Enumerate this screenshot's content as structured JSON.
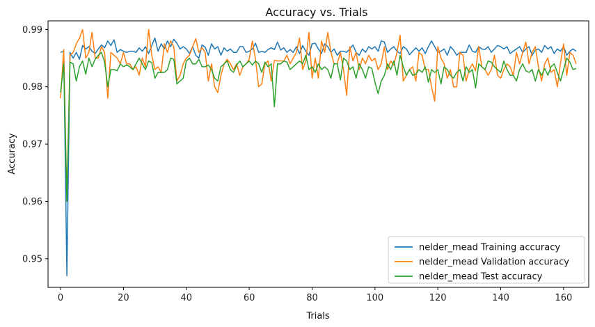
{
  "chart_data": {
    "type": "line",
    "title": "Accuracy vs. Trials",
    "xlabel": "Trials",
    "ylabel": "Accuracy",
    "xlim": [
      -4,
      168
    ],
    "ylim": [
      0.945,
      0.9915
    ],
    "xticks": [
      0,
      20,
      40,
      60,
      80,
      100,
      120,
      140,
      160
    ],
    "yticks": [
      0.95,
      0.96,
      0.97,
      0.98,
      0.99
    ],
    "ytick_labels": [
      "0.95",
      "0.96",
      "0.97",
      "0.98",
      "0.99"
    ],
    "grid": false,
    "legend_position": "lower-right",
    "series": [
      {
        "name": "nelder_mead Training accuracy",
        "color": "#1f77b4",
        "x_start": 0,
        "values": [
          0.986,
          0.9862,
          0.947,
          0.986,
          0.985,
          0.986,
          0.9848,
          0.9872,
          0.9866,
          0.987,
          0.9862,
          0.9858,
          0.9866,
          0.9873,
          0.9868,
          0.988,
          0.9872,
          0.9882,
          0.986,
          0.9865,
          0.9862,
          0.986,
          0.9862,
          0.9862,
          0.986,
          0.9868,
          0.9862,
          0.987,
          0.9858,
          0.9872,
          0.9885,
          0.9862,
          0.9875,
          0.9866,
          0.988,
          0.987,
          0.9883,
          0.9876,
          0.9866,
          0.987,
          0.9866,
          0.9858,
          0.987,
          0.9855,
          0.985,
          0.9873,
          0.9869,
          0.9855,
          0.9875,
          0.9866,
          0.987,
          0.9855,
          0.9868,
          0.9862,
          0.9866,
          0.986,
          0.986,
          0.987,
          0.987,
          0.986,
          0.9862,
          0.9866,
          0.9876,
          0.986,
          0.9862,
          0.986,
          0.9865,
          0.9868,
          0.9865,
          0.9878,
          0.9864,
          0.9868,
          0.986,
          0.9865,
          0.986,
          0.987,
          0.9858,
          0.9872,
          0.9862,
          0.9855,
          0.9875,
          0.9876,
          0.9866,
          0.9858,
          0.9875,
          0.987,
          0.986,
          0.9866,
          0.9855,
          0.9862,
          0.9862,
          0.986,
          0.9866,
          0.9873,
          0.986,
          0.9855,
          0.9866,
          0.986,
          0.987,
          0.9866,
          0.987,
          0.9862,
          0.988,
          0.9878,
          0.986,
          0.9866,
          0.987,
          0.9862,
          0.9858,
          0.987,
          0.9866,
          0.9856,
          0.9862,
          0.9868,
          0.9862,
          0.9868,
          0.9858,
          0.987,
          0.988,
          0.987,
          0.986,
          0.9862,
          0.9866,
          0.9855,
          0.987,
          0.9864,
          0.9855,
          0.986,
          0.986,
          0.986,
          0.9873,
          0.9862,
          0.986,
          0.987,
          0.9866,
          0.9865,
          0.987,
          0.986,
          0.9866,
          0.9872,
          0.987,
          0.9866,
          0.987,
          0.9858,
          0.9862,
          0.9866,
          0.987,
          0.986,
          0.9866,
          0.987,
          0.9855,
          0.9864,
          0.9866,
          0.986,
          0.9872,
          0.9866,
          0.987,
          0.9858,
          0.9866,
          0.9862,
          0.987,
          0.9855,
          0.9862,
          0.9866,
          0.9862
        ]
      },
      {
        "name": "nelder_mead Validation accuracy",
        "color": "#ff7f0e",
        "x_start": 0,
        "values": [
          0.978,
          0.9865,
          0.96,
          0.9855,
          0.986,
          0.9875,
          0.9885,
          0.99,
          0.985,
          0.986,
          0.9895,
          0.985,
          0.985,
          0.987,
          0.986,
          0.978,
          0.986,
          0.9855,
          0.985,
          0.984,
          0.986,
          0.984,
          0.984,
          0.983,
          0.9835,
          0.982,
          0.985,
          0.9835,
          0.99,
          0.9855,
          0.983,
          0.9835,
          0.9825,
          0.9875,
          0.986,
          0.988,
          0.987,
          0.981,
          0.982,
          0.984,
          0.985,
          0.9855,
          0.987,
          0.9884,
          0.986,
          0.9868,
          0.986,
          0.981,
          0.984,
          0.98,
          0.979,
          0.982,
          0.984,
          0.9848,
          0.984,
          0.983,
          0.984,
          0.982,
          0.9835,
          0.984,
          0.9848,
          0.988,
          0.9848,
          0.98,
          0.9805,
          0.984,
          0.9845,
          0.981,
          0.9846,
          0.9845,
          0.9845,
          0.9845,
          0.9855,
          0.984,
          0.985,
          0.986,
          0.9885,
          0.983,
          0.9845,
          0.9895,
          0.9815,
          0.985,
          0.9815,
          0.988,
          0.986,
          0.9895,
          0.986,
          0.984,
          0.984,
          0.986,
          0.983,
          0.9785,
          0.987,
          0.9845,
          0.986,
          0.983,
          0.985,
          0.984,
          0.9855,
          0.9845,
          0.985,
          0.983,
          0.984,
          0.987,
          0.983,
          0.9845,
          0.9838,
          0.986,
          0.989,
          0.981,
          0.982,
          0.983,
          0.9835,
          0.981,
          0.986,
          0.9855,
          0.983,
          0.983,
          0.98,
          0.9775,
          0.987,
          0.985,
          0.984,
          0.9815,
          0.983,
          0.98,
          0.98,
          0.986,
          0.9855,
          0.981,
          0.983,
          0.984,
          0.9828,
          0.987,
          0.9835,
          0.983,
          0.982,
          0.983,
          0.9855,
          0.982,
          0.9815,
          0.983,
          0.984,
          0.9835,
          0.982,
          0.986,
          0.984,
          0.986,
          0.9878,
          0.984,
          0.986,
          0.987,
          0.9835,
          0.981,
          0.984,
          0.985,
          0.9825,
          0.983,
          0.98,
          0.984,
          0.9875,
          0.982,
          0.986,
          0.9855,
          0.984
        ]
      },
      {
        "name": "nelder_mead Test accuracy",
        "color": "#2ca02c",
        "x_start": 0,
        "values": [
          0.979,
          0.984,
          0.96,
          0.9843,
          0.984,
          0.981,
          0.9835,
          0.9845,
          0.9822,
          0.985,
          0.9835,
          0.9848,
          0.9855,
          0.986,
          0.9843,
          0.98,
          0.983,
          0.983,
          0.9828,
          0.984,
          0.9835,
          0.9838,
          0.9835,
          0.983,
          0.984,
          0.985,
          0.984,
          0.983,
          0.9845,
          0.9842,
          0.9815,
          0.9825,
          0.9825,
          0.9825,
          0.983,
          0.985,
          0.9848,
          0.9805,
          0.981,
          0.9815,
          0.9845,
          0.985,
          0.984,
          0.984,
          0.9848,
          0.9835,
          0.9835,
          0.9838,
          0.983,
          0.9815,
          0.981,
          0.9835,
          0.984,
          0.9845,
          0.983,
          0.9825,
          0.9838,
          0.9845,
          0.9835,
          0.984,
          0.9845,
          0.9838,
          0.9845,
          0.984,
          0.9825,
          0.9843,
          0.9835,
          0.984,
          0.9765,
          0.984,
          0.984,
          0.9845,
          0.9843,
          0.983,
          0.9835,
          0.984,
          0.9845,
          0.984,
          0.9855,
          0.983,
          0.9835,
          0.9825,
          0.984,
          0.983,
          0.9835,
          0.983,
          0.9815,
          0.984,
          0.984,
          0.9812,
          0.985,
          0.9845,
          0.983,
          0.9835,
          0.9815,
          0.984,
          0.983,
          0.9815,
          0.9835,
          0.9832,
          0.9808,
          0.9788,
          0.981,
          0.982,
          0.984,
          0.983,
          0.9845,
          0.982,
          0.9855,
          0.9835,
          0.982,
          0.983,
          0.982,
          0.9822,
          0.983,
          0.9825,
          0.9835,
          0.9808,
          0.983,
          0.9825,
          0.983,
          0.9805,
          0.9835,
          0.983,
          0.982,
          0.9815,
          0.9825,
          0.983,
          0.981,
          0.9835,
          0.9825,
          0.983,
          0.9798,
          0.984,
          0.9835,
          0.983,
          0.9845,
          0.9843,
          0.9835,
          0.983,
          0.9825,
          0.9845,
          0.983,
          0.982,
          0.982,
          0.981,
          0.983,
          0.984,
          0.9828,
          0.9825,
          0.983,
          0.981,
          0.983,
          0.982,
          0.9832,
          0.982,
          0.9835,
          0.984,
          0.9825,
          0.981,
          0.983,
          0.985,
          0.9843,
          0.983,
          0.9832
        ]
      }
    ]
  }
}
